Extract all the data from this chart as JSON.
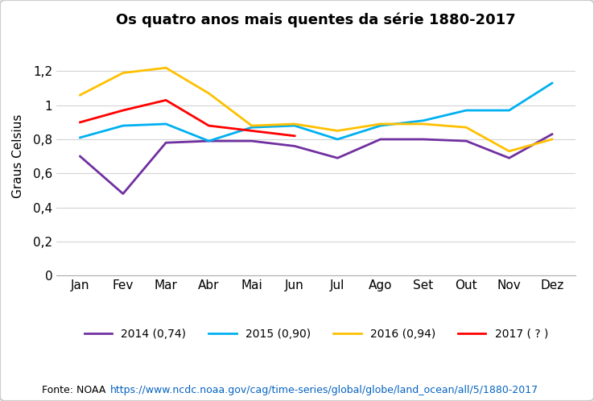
{
  "title": "Os quatro anos mais quentes da série 1880-2017",
  "ylabel": "Graus Celsius",
  "months": [
    "Jan",
    "Fev",
    "Mar",
    "Abr",
    "Mai",
    "Jun",
    "Jul",
    "Ago",
    "Set",
    "Out",
    "Nov",
    "Dez"
  ],
  "series": {
    "2014 (0,74)": {
      "values": [
        0.7,
        0.48,
        0.78,
        0.79,
        0.79,
        0.76,
        0.69,
        0.8,
        0.8,
        0.79,
        0.69,
        0.83
      ],
      "color": "#7030A0"
    },
    "2015 (0,90)": {
      "values": [
        0.81,
        0.88,
        0.89,
        0.79,
        0.87,
        0.88,
        0.8,
        0.88,
        0.91,
        0.97,
        0.97,
        1.13
      ],
      "color": "#00B0F0"
    },
    "2016 (0,94)": {
      "values": [
        1.06,
        1.19,
        1.22,
        1.07,
        0.88,
        0.89,
        0.85,
        0.89,
        0.89,
        0.87,
        0.73,
        0.8
      ],
      "color": "#FFC000"
    },
    "2017 ( ? )": {
      "values": [
        0.9,
        0.97,
        1.03,
        0.88,
        0.85,
        0.82,
        null,
        null,
        null,
        null,
        null,
        null
      ],
      "color": "#FF0000"
    }
  },
  "ylim": [
    0,
    1.4
  ],
  "yticks": [
    0,
    0.2,
    0.4,
    0.6,
    0.8,
    1.0,
    1.2
  ],
  "ytick_labels": [
    "0",
    "0,2",
    "0,4",
    "0,6",
    "0,8",
    "1",
    "1,2"
  ],
  "fonte_text": "Fonte: NOAA ",
  "fonte_url": "https://www.ncdc.noaa.gov/cag/time-series/global/globe/land_ocean/all/5/1880-2017",
  "background_color": "#FFFFFF",
  "grid_color": "#D3D3D3"
}
